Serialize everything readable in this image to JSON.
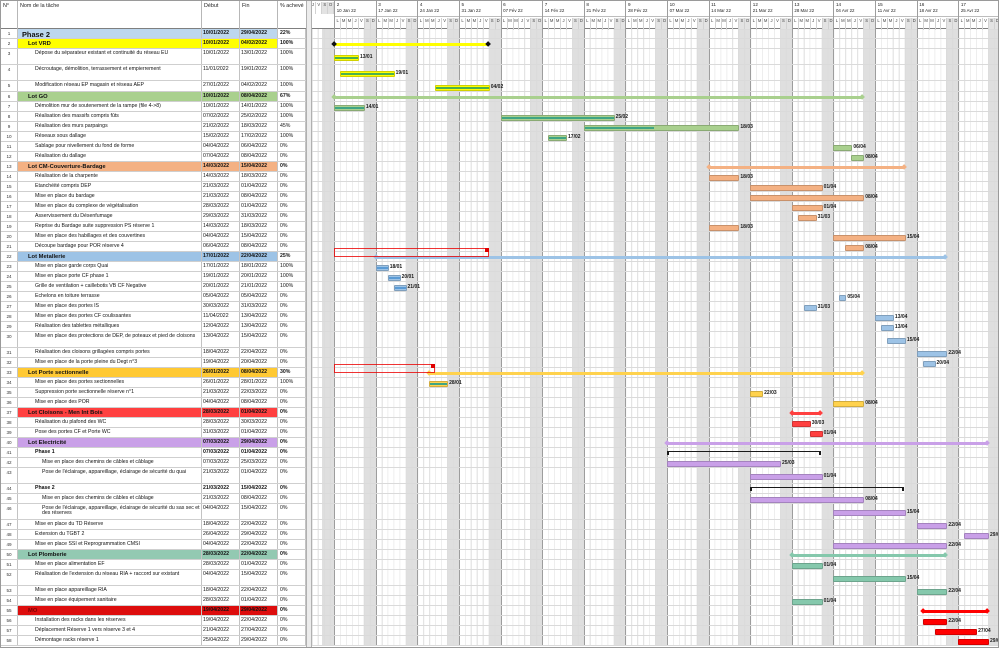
{
  "table": {
    "columns": {
      "num": "N°",
      "name": "Nom de la tâche",
      "start": "Début",
      "end": "Fin",
      "pct": "% achevé"
    }
  },
  "timeline": {
    "weekday_letters": [
      "L",
      "M",
      "M",
      "J",
      "V",
      "S",
      "D"
    ],
    "prefix_letters": [
      "J",
      "V",
      "S",
      "D"
    ],
    "weeks": [
      {
        "num": "2",
        "label": "10 Jan 22"
      },
      {
        "num": "3",
        "label": "17 Jan 22"
      },
      {
        "num": "4",
        "label": "24 Jan 22"
      },
      {
        "num": "5",
        "label": "31 Jan 22"
      },
      {
        "num": "6",
        "label": "07 Fév 22"
      },
      {
        "num": "7",
        "label": "14 Fév 22"
      },
      {
        "num": "8",
        "label": "21 Fév 22"
      },
      {
        "num": "9",
        "label": "28 Fév 22"
      },
      {
        "num": "10",
        "label": "07 Mar 22"
      },
      {
        "num": "11",
        "label": "14 Mar 22"
      },
      {
        "num": "12",
        "label": "21 Mar 22"
      },
      {
        "num": "13",
        "label": "28 Mar 22"
      },
      {
        "num": "14",
        "label": "04 Avr 22"
      },
      {
        "num": "15",
        "label": "11 Avr 22"
      },
      {
        "num": "16",
        "label": "18 Avr 22"
      },
      {
        "num": "17",
        "label": "25 Avr 22"
      }
    ]
  },
  "lots": {
    "phase": {
      "bg": "#bdd7ee",
      "bar": "none",
      "progress": "none"
    },
    "vrd": {
      "bg": "#ffff00",
      "bar": "#ffff00",
      "progress": "#4caf50",
      "diamond": "#111111"
    },
    "go": {
      "bg": "#a9d08e",
      "bar": "#a9d08e",
      "progress": "#3fa584"
    },
    "cm": {
      "bg": "#f4b183",
      "bar": "#f4b183",
      "progress": "#ed7d31"
    },
    "met": {
      "bg": "#9dc3e6",
      "bar": "#9dc3e6",
      "progress": "#5b9bd5"
    },
    "porte": {
      "bg": "#ffc933",
      "bar": "#ffd24d",
      "progress": "#3fa584"
    },
    "cloisons": {
      "bg": "#ff4040",
      "bar": "#ff4040",
      "progress": "#c00000"
    },
    "elec": {
      "bg": "#c9a0e8",
      "bar": "#c9a0e8",
      "progress": "#a76fd4"
    },
    "plomb": {
      "bg": "#93c9b2",
      "bar": "#85c8ac",
      "progress": "#4aa98a"
    },
    "mo": {
      "bg": "#dd0d0d",
      "bar": "#ff0000",
      "progress": "#c00000"
    }
  },
  "rows": [
    {
      "n": 1,
      "kind": "phase",
      "lot": "phase",
      "name": "Phase 2",
      "start": "10/01/2022",
      "end": "29/04/2022",
      "pct": "22%"
    },
    {
      "n": 2,
      "kind": "lot",
      "lot": "vrd",
      "name": "Lot VRD",
      "start": "10/01/2022",
      "end": "04/02/2022",
      "pct": "100%"
    },
    {
      "n": 3,
      "kind": "task",
      "lot": "vrd",
      "h": 16,
      "name": "Dépose du séparateur existant et continuité du réseau EU",
      "start": "10/01/2022",
      "end": "13/01/2022",
      "pct": "100%"
    },
    {
      "n": 4,
      "kind": "task",
      "lot": "vrd",
      "h": 16,
      "name": "Décroutage, démolition, terrassement et empierrement",
      "start": "11/01/2022",
      "end": "19/01/2022",
      "pct": "100%"
    },
    {
      "n": 5,
      "kind": "task",
      "lot": "vrd",
      "h": 11,
      "name": "Modification réseau EP magasin et réseau AEP",
      "start": "27/01/2022",
      "end": "04/02/2022",
      "pct": "100%"
    },
    {
      "n": 6,
      "kind": "lot",
      "lot": "go",
      "name": "Lot GO",
      "start": "10/01/2022",
      "end": "08/04/2022",
      "pct": "67%"
    },
    {
      "n": 7,
      "kind": "task",
      "lot": "go",
      "name": "Démolition mur de soutenement de la rampe (file 4->8)",
      "start": "10/01/2022",
      "end": "14/01/2022",
      "pct": "100%"
    },
    {
      "n": 8,
      "kind": "task",
      "lot": "go",
      "name": "Réalisation des massifs compris fûts",
      "start": "07/02/2022",
      "end": "25/02/2022",
      "pct": "100%"
    },
    {
      "n": 9,
      "kind": "task",
      "lot": "go",
      "name": "Réalisation des murs parpaings",
      "start": "21/02/2022",
      "end": "18/03/2022",
      "pct": "45%"
    },
    {
      "n": 10,
      "kind": "task",
      "lot": "go",
      "name": "Réseaux sous dallage",
      "start": "15/02/2022",
      "end": "17/02/2022",
      "pct": "100%"
    },
    {
      "n": 11,
      "kind": "task",
      "lot": "go",
      "name": "Sablage pour nivellement du fond de forme",
      "start": "04/04/2022",
      "end": "06/04/2022",
      "pct": "0%"
    },
    {
      "n": 12,
      "kind": "task",
      "lot": "go",
      "name": "Réalisation du dallage",
      "start": "07/04/2022",
      "end": "08/04/2022",
      "pct": "0%"
    },
    {
      "n": 13,
      "kind": "lot",
      "lot": "cm",
      "name": "Lot CM-Couverture-Bardage",
      "start": "14/03/2022",
      "end": "15/04/2022",
      "pct": "0%"
    },
    {
      "n": 14,
      "kind": "task",
      "lot": "cm",
      "name": "Réalisation de la charpente",
      "start": "14/03/2022",
      "end": "18/03/2022",
      "pct": "0%"
    },
    {
      "n": 15,
      "kind": "task",
      "lot": "cm",
      "name": "Etanchéité compris DEP",
      "start": "21/03/2022",
      "end": "01/04/2022",
      "pct": "0%"
    },
    {
      "n": 16,
      "kind": "task",
      "lot": "cm",
      "name": "Mise en place du bardage",
      "start": "21/03/2022",
      "end": "08/04/2022",
      "pct": "0%"
    },
    {
      "n": 17,
      "kind": "task",
      "lot": "cm",
      "name": "Mise en place du complexe de végétalisation",
      "start": "28/03/2022",
      "end": "01/04/2022",
      "pct": "0%"
    },
    {
      "n": 18,
      "kind": "task",
      "lot": "cm",
      "name": "Asservissement du Désenfumage",
      "start": "29/03/2022",
      "end": "31/03/2022",
      "pct": "0%"
    },
    {
      "n": 19,
      "kind": "task",
      "lot": "cm",
      "name": "Reprise du Bardage suite suppression PS réserve 1",
      "start": "14/03/2022",
      "end": "18/03/2022",
      "pct": "0%"
    },
    {
      "n": 20,
      "kind": "task",
      "lot": "cm",
      "name": "Mise en place des habillages et des couvertines",
      "start": "04/04/2022",
      "end": "15/04/2022",
      "pct": "0%"
    },
    {
      "n": 21,
      "kind": "task",
      "lot": "cm",
      "name": "Découpe bardage pour POR réserve 4",
      "start": "06/04/2022",
      "end": "08/04/2022",
      "pct": "0%"
    },
    {
      "n": 22,
      "kind": "lot",
      "lot": "met",
      "name": "Lot Metallerie",
      "start": "17/01/2022",
      "end": "22/04/2022",
      "pct": "25%"
    },
    {
      "n": 23,
      "kind": "task",
      "lot": "met",
      "name": "Mise en place garde corps Quai",
      "start": "17/01/2022",
      "end": "18/01/2022",
      "pct": "100%"
    },
    {
      "n": 24,
      "kind": "task",
      "lot": "met",
      "name": "Mise en place porte CF phase 1",
      "start": "19/01/2022",
      "end": "20/01/2022",
      "pct": "100%"
    },
    {
      "n": 25,
      "kind": "task",
      "lot": "met",
      "name": "Grille de ventilation + caillebotis VB CF Negative",
      "start": "20/01/2022",
      "end": "21/01/2022",
      "pct": "100%"
    },
    {
      "n": 26,
      "kind": "task",
      "lot": "met",
      "name": "Echelons en toiture terrasse",
      "start": "05/04/2022",
      "end": "05/04/2022",
      "pct": "0%"
    },
    {
      "n": 27,
      "kind": "task",
      "lot": "met",
      "name": "Mise en place des portes IS",
      "start": "30/03/2022",
      "end": "31/03/2022",
      "pct": "0%"
    },
    {
      "n": 28,
      "kind": "task",
      "lot": "met",
      "name": "Mise en place des portes CF coulissantes",
      "start": "11/04/2022",
      "end": "13/04/2022",
      "pct": "0%"
    },
    {
      "n": 29,
      "kind": "task",
      "lot": "met",
      "name": "Réalisation des tablettes métalliques",
      "start": "12/04/2022",
      "end": "13/04/2022",
      "pct": "0%"
    },
    {
      "n": 30,
      "kind": "task",
      "lot": "met",
      "h": 16,
      "name": "Mise en place des protections de DEP, de poteaux et pied de cloisons",
      "start": "13/04/2022",
      "end": "15/04/2022",
      "pct": "0%"
    },
    {
      "n": 31,
      "kind": "task",
      "lot": "met",
      "name": "Réalisation des cloisons grillagées compris portes",
      "start": "18/04/2022",
      "end": "22/04/2022",
      "pct": "0%"
    },
    {
      "n": 32,
      "kind": "task",
      "lot": "met",
      "name": "Mise en place de la porte pleine du Degt n°3",
      "start": "19/04/2022",
      "end": "20/04/2022",
      "pct": "0%"
    },
    {
      "n": 33,
      "kind": "lot",
      "lot": "porte",
      "name": "Lot Porte sectionnelle",
      "start": "26/01/2022",
      "end": "08/04/2022",
      "pct": "30%"
    },
    {
      "n": 34,
      "kind": "task",
      "lot": "porte",
      "name": "Mise en place des portes sectionnelles",
      "start": "26/01/2022",
      "end": "28/01/2022",
      "pct": "100%"
    },
    {
      "n": 35,
      "kind": "task",
      "lot": "porte",
      "name": "Suppression porte sectionnelle réserve n°1",
      "start": "21/03/2022",
      "end": "22/03/2022",
      "pct": "0%"
    },
    {
      "n": 36,
      "kind": "task",
      "lot": "porte",
      "name": "Mise en place des POR",
      "start": "04/04/2022",
      "end": "08/04/2022",
      "pct": "0%"
    },
    {
      "n": 37,
      "kind": "lot",
      "lot": "cloisons",
      "name": "Lot Cloisons - Men Int Bois",
      "start": "28/03/2022",
      "end": "01/04/2022",
      "pct": "0%"
    },
    {
      "n": 38,
      "kind": "task",
      "lot": "cloisons",
      "name": "Réalisation du plafond des WC",
      "start": "28/03/2022",
      "end": "30/03/2022",
      "pct": "0%"
    },
    {
      "n": 39,
      "kind": "task",
      "lot": "cloisons",
      "name": "Pose des portes CF et Porte WC",
      "start": "31/03/2022",
      "end": "01/04/2022",
      "pct": "0%"
    },
    {
      "n": 40,
      "kind": "lot",
      "lot": "elec",
      "name": "Lot Electricité",
      "start": "07/03/2022",
      "end": "29/04/2022",
      "pct": "0%"
    },
    {
      "n": 41,
      "kind": "group",
      "lot": "elec",
      "name": "Phase 1",
      "start": "07/03/2022",
      "end": "01/04/2022",
      "pct": "0%"
    },
    {
      "n": 42,
      "kind": "task",
      "lot": "elec",
      "sub": true,
      "name": "Mise en place des chemins de câbles et câblage",
      "start": "07/03/2022",
      "end": "25/03/2022",
      "pct": "0%"
    },
    {
      "n": 43,
      "kind": "task",
      "lot": "elec",
      "sub": true,
      "h": 16,
      "name": "Pose de l'éclairage, appareillage, éclairage de sécurité du quai",
      "start": "21/03/2022",
      "end": "01/04/2022",
      "pct": "0%"
    },
    {
      "n": 44,
      "kind": "group",
      "lot": "elec",
      "name": "Phase 2",
      "start": "21/03/2022",
      "end": "15/04/2022",
      "pct": "0%"
    },
    {
      "n": 45,
      "kind": "task",
      "lot": "elec",
      "sub": true,
      "name": "Mise en place des chemins de câbles et câblage",
      "start": "21/03/2022",
      "end": "08/04/2022",
      "pct": "0%"
    },
    {
      "n": 46,
      "kind": "task",
      "lot": "elec",
      "sub": true,
      "h": 16,
      "name": "Pose de l'éclairage, appareillage, éclairage de sécurité du sas sec et des réserves",
      "start": "04/04/2022",
      "end": "15/04/2022",
      "pct": "0%"
    },
    {
      "n": 47,
      "kind": "task",
      "lot": "elec",
      "name": "Mise en place du TD Réserve",
      "start": "18/04/2022",
      "end": "22/04/2022",
      "pct": "0%"
    },
    {
      "n": 48,
      "kind": "task",
      "lot": "elec",
      "name": "Extension du TGBT 2",
      "start": "26/04/2022",
      "end": "29/04/2022",
      "pct": "0%"
    },
    {
      "n": 49,
      "kind": "task",
      "lot": "elec",
      "name": "Mise en place SSI et Reprogrammation CMSI",
      "start": "04/04/2022",
      "end": "22/04/2022",
      "pct": "0%"
    },
    {
      "n": 50,
      "kind": "lot",
      "lot": "plomb",
      "name": "Lot Plomberie",
      "start": "28/03/2022",
      "end": "22/04/2022",
      "pct": "0%"
    },
    {
      "n": 51,
      "kind": "task",
      "lot": "plomb",
      "name": "Mise en place alimentation EF",
      "start": "28/03/2022",
      "end": "01/04/2022",
      "pct": "0%"
    },
    {
      "n": 52,
      "kind": "task",
      "lot": "plomb",
      "h": 16,
      "name": "Réalisation de l'extension du réseau RIA + raccord sur existant",
      "start": "04/04/2022",
      "end": "15/04/2022",
      "pct": "0%"
    },
    {
      "n": 53,
      "kind": "task",
      "lot": "plomb",
      "name": "Mise en place appareillage RIA",
      "start": "18/04/2022",
      "end": "22/04/2022",
      "pct": "0%"
    },
    {
      "n": 54,
      "kind": "task",
      "lot": "plomb",
      "name": "Mise en place équipement sanitaire",
      "start": "28/03/2022",
      "end": "01/04/2022",
      "pct": "0%"
    },
    {
      "n": 55,
      "kind": "lot",
      "lot": "mo",
      "name": "MO",
      "name_color": "#7b0000",
      "start": "19/04/2022",
      "end": "29/04/2022",
      "pct": "0%"
    },
    {
      "n": 56,
      "kind": "task",
      "lot": "mo",
      "name": "Installation des racks dans les réserves",
      "start": "19/04/2022",
      "end": "22/04/2022",
      "pct": "0%"
    },
    {
      "n": 57,
      "kind": "task",
      "lot": "mo",
      "name": "Déplacement Réserve 1 vers réserve 3 et 4",
      "start": "21/04/2022",
      "end": "27/04/2022",
      "pct": "0%"
    },
    {
      "n": 58,
      "kind": "task",
      "lot": "mo",
      "name": "Démontage racks réserve 1",
      "start": "25/04/2022",
      "end": "29/04/2022",
      "pct": "0%"
    }
  ],
  "annotations": [
    {
      "after_row": 21,
      "start": "10/01/2022",
      "end": "04/02/2022"
    },
    {
      "after_row": 32,
      "start": "10/01/2022",
      "end": "26/01/2022"
    }
  ]
}
